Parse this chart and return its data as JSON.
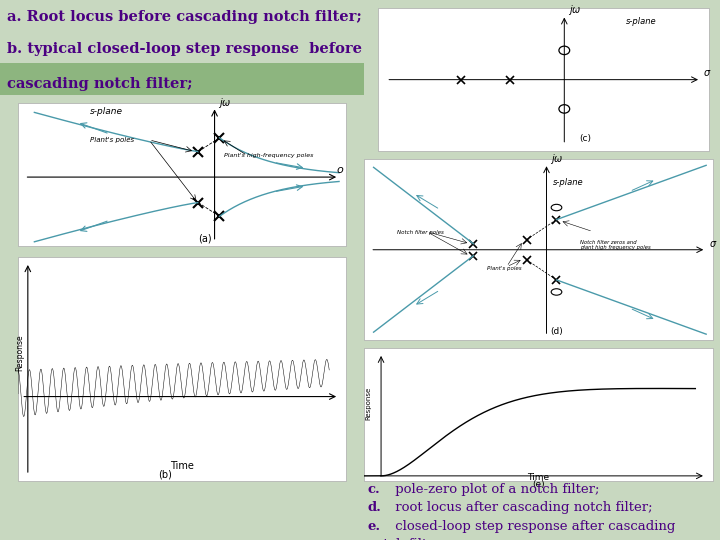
{
  "bg_color": "#c8d8c0",
  "title_color": "#4b0082",
  "label_color": "#4b0082",
  "panel_bg": "#ffffff",
  "teal": "#4a9aaa",
  "title_a": "a.",
  "title_line1": " Root locus before cascading notch filter;",
  "title_b": "b.",
  "title_line2": " typical closed-loop step response  before",
  "title_line3": "cascading notch filter;",
  "green_bar_color": "#7aaa6a",
  "label_c": "c.",
  "label_c2": " pole-zero plot of a notch filter;",
  "label_d": "d.",
  "label_d2": " root locus after cascading notch filter;",
  "label_e": "e.",
  "label_e2": " closed-loop step response after cascading",
  "label_e3": "notch filter."
}
